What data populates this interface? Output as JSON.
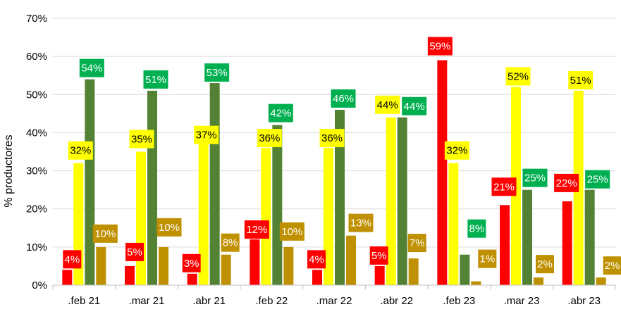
{
  "chart_data": {
    "type": "bar",
    "title": "",
    "xlabel": "",
    "ylabel": "% productores",
    "ylim": [
      0,
      70
    ],
    "yticks": [
      "0%",
      "10%",
      "20%",
      "30%",
      "40%",
      "50%",
      "60%",
      "70%"
    ],
    "grid": true,
    "legend": "none",
    "categories": [
      ".feb 21",
      ".mar 21",
      ".abr 21",
      ".feb 22",
      ".mar 22",
      ".abr 22",
      ".feb 23",
      ".mar 23",
      ".abr 23"
    ],
    "series": [
      {
        "color": "#ff0000",
        "label_bg": "#ff0000",
        "label_fg": "#ffffff",
        "values": [
          4,
          5,
          3,
          12,
          4,
          5,
          59,
          21,
          22
        ],
        "labels": [
          "4%",
          "5%",
          "3%",
          "12%",
          "4%",
          "5%",
          "59%",
          "21%",
          "22%"
        ]
      },
      {
        "color": "#ffff00",
        "label_bg": "#ffff00",
        "label_fg": "#000000",
        "values": [
          32,
          35,
          37,
          36,
          36,
          44,
          32,
          52,
          51
        ],
        "labels": [
          "32%",
          "35%",
          "37%",
          "36%",
          "36%",
          "44%",
          "32%",
          "52%",
          "51%"
        ]
      },
      {
        "color": "#548235",
        "label_bg": "#00b050",
        "label_fg": "#ffffff",
        "values": [
          54,
          51,
          53,
          42,
          46,
          44,
          8,
          25,
          25
        ],
        "labels": [
          "54%",
          "51%",
          "53%",
          "42%",
          "46%",
          "44%",
          "8%",
          "25%",
          "25%"
        ]
      },
      {
        "color": "#bf9000",
        "label_bg": "#bf9000",
        "label_fg": "#ffffff",
        "values": [
          10,
          10,
          8,
          10,
          13,
          7,
          1,
          2,
          2
        ],
        "labels": [
          "10%",
          "10%",
          "8%",
          "10%",
          "13%",
          "7%",
          "1%",
          "2%",
          "2%"
        ]
      }
    ]
  }
}
